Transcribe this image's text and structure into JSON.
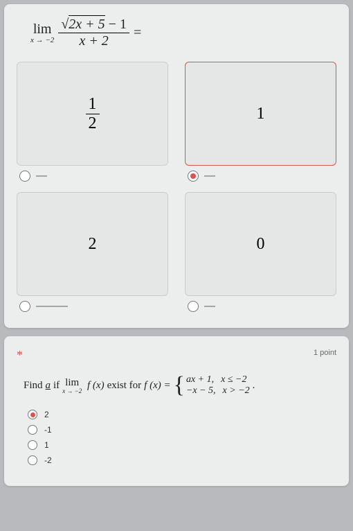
{
  "question1": {
    "prompt_html": "lim(x→-2) (√(2x+5) − 1) / (x + 2) =",
    "options": [
      {
        "id": "opt-a",
        "display": "1/2",
        "selected": false
      },
      {
        "id": "opt-b",
        "display": "1",
        "selected": true
      },
      {
        "id": "opt-c",
        "display": "2",
        "selected": false
      },
      {
        "id": "opt-d",
        "display": "0",
        "selected": false
      }
    ],
    "dash": "—",
    "longdash": "———",
    "box_border_color": "#cccccc",
    "selected_border_color": "#d9534f",
    "radio_checked_color": "#d9534f"
  },
  "question2": {
    "required": true,
    "points_label": "1 point",
    "prompt_prefix": "Find ",
    "prompt_a": "a",
    "prompt_mid": " if ",
    "prompt_exist": " exist for ",
    "piecewise": {
      "row1_left": "ax + 1,",
      "row1_right": "x ≤ −2",
      "row2_left": "−x − 5,",
      "row2_right": "x > −2"
    },
    "trailing": ".",
    "options": [
      {
        "label": "2",
        "selected": true
      },
      {
        "label": "-1",
        "selected": false
      },
      {
        "label": "1",
        "selected": false
      },
      {
        "label": "-2",
        "selected": false
      }
    ]
  }
}
